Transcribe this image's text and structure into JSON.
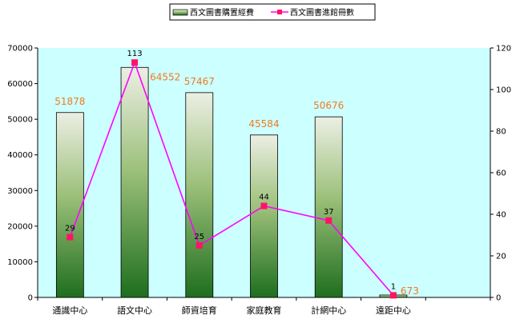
{
  "chart_data": {
    "type": "bar",
    "categories": [
      "通識中心",
      "語文中心",
      "師資培育",
      "家庭教育",
      "計網中心",
      "遠距中心"
    ],
    "series": [
      {
        "name": "西文圖書購置經費",
        "kind": "bar",
        "axis": "left",
        "values": [
          51878,
          64552,
          57467,
          45584,
          50676,
          673
        ]
      },
      {
        "name": "西文圖書進館冊數",
        "kind": "line",
        "axis": "right",
        "values": [
          29,
          113,
          25,
          44,
          37,
          1
        ]
      }
    ],
    "bar_labels": [
      "51878",
      "64552",
      "57467",
      "45584",
      "50676",
      "673"
    ],
    "point_labels": [
      "29",
      "113",
      "25",
      "44",
      "37",
      "1"
    ],
    "ylim_left": [
      0,
      70000
    ],
    "yticks_left": [
      "0",
      "10000",
      "20000",
      "30000",
      "40000",
      "50000",
      "60000",
      "70000"
    ],
    "ylim_right": [
      0,
      120
    ],
    "yticks_right": [
      "0",
      "20",
      "40",
      "60",
      "80",
      "100",
      "120"
    ],
    "grid": false,
    "legend_position": "top-center",
    "colors": {
      "plot_background": "#ccffff",
      "bar_top": "#ecefe4",
      "bar_bottom": "#1e6e1e",
      "line": "#ff00ff",
      "marker": "#ff1464",
      "bar_label": "#f07a1e"
    }
  }
}
